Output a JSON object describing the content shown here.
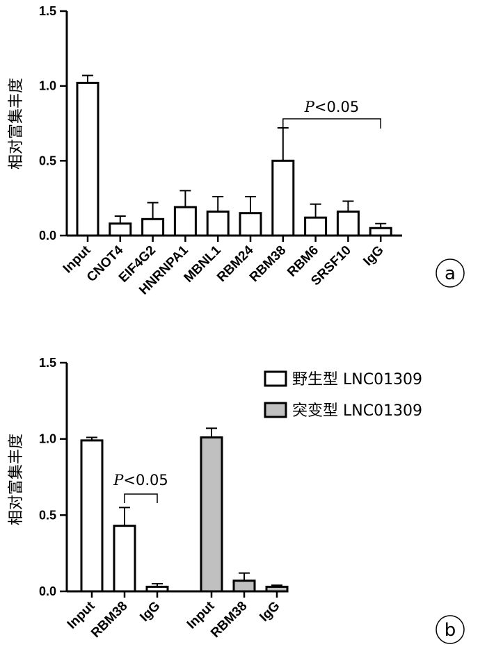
{
  "panels": [
    {
      "panel_label": "a",
      "significance": {
        "text": "P<0.05",
        "from": "RBM38",
        "to": "IgG"
      },
      "chart_data": {
        "type": "bar",
        "title": "",
        "xlabel": "",
        "ylabel": "相对富集丰度",
        "ylim": [
          0,
          1.5
        ],
        "yticks": [
          "0.0",
          "0.5",
          "1.0",
          "1.5"
        ],
        "categories": [
          "Input",
          "CNOT4",
          "EIF4G2",
          "HNRNPA1",
          "MBNL1",
          "RBM24",
          "RBM38",
          "RBM6",
          "SRSF10",
          "IgG"
        ],
        "series": [
          {
            "values": [
              1.02,
              0.08,
              0.11,
              0.19,
              0.16,
              0.15,
              0.5,
              0.12,
              0.16,
              0.05
            ],
            "errors": [
              0.05,
              0.05,
              0.11,
              0.11,
              0.1,
              0.11,
              0.22,
              0.09,
              0.07,
              0.03
            ],
            "color": "#ffffff"
          }
        ]
      }
    },
    {
      "panel_label": "b",
      "significance": {
        "text": "P<0.05",
        "from": "RBM38",
        "to": "IgG"
      },
      "chart_data": {
        "type": "bar",
        "title": "",
        "xlabel": "",
        "ylabel": "相对富集丰度",
        "ylim": [
          0,
          1.5
        ],
        "yticks": [
          "0.0",
          "0.5",
          "1.0",
          "1.5"
        ],
        "categories": [
          "Input",
          "RBM38",
          "IgG"
        ],
        "legend": "top-right",
        "series": [
          {
            "name": "野生型 LNC01309",
            "values": [
              0.99,
              0.43,
              0.03
            ],
            "errors": [
              0.02,
              0.12,
              0.02
            ],
            "color": "#ffffff"
          },
          {
            "name": "突变型 LNC01309",
            "values": [
              1.01,
              0.07,
              0.03
            ],
            "errors": [
              0.06,
              0.05,
              0.01
            ],
            "color": "#c0c0c0"
          }
        ]
      }
    }
  ]
}
